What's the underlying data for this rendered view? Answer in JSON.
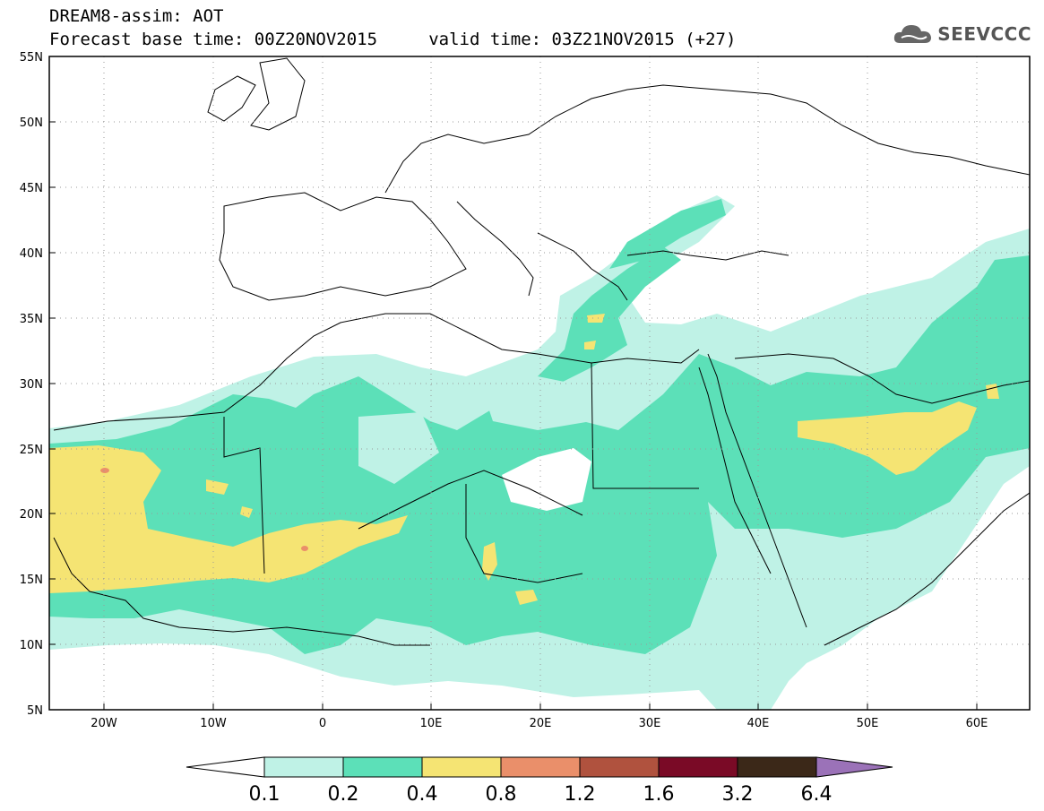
{
  "title": {
    "line1": "DREAM8-assim: AOT",
    "line2": "Forecast base time: 00Z20NOV2015     valid time: 03Z21NOV2015 (+27)"
  },
  "logo": {
    "text": "SEEVCCC",
    "icon": "cloud-icon"
  },
  "map": {
    "region": "North Africa, Mediterranean, Middle East",
    "lon_range": [
      -25,
      65
    ],
    "lat_range": [
      5,
      55
    ],
    "lat_ticks": [
      "55N",
      "50N",
      "45N",
      "40N",
      "35N",
      "30N",
      "25N",
      "20N",
      "15N",
      "10N",
      "5N"
    ],
    "lon_ticks": [
      "20W",
      "10W",
      "0",
      "10E",
      "20E",
      "30E",
      "40E",
      "50E",
      "60E"
    ],
    "gridlines": true,
    "field": "AOT"
  },
  "colorbar": {
    "labels": [
      "0.1",
      "0.2",
      "0.4",
      "0.8",
      "1.2",
      "1.6",
      "3.2",
      "6.4"
    ],
    "colors": [
      "#bff2e6",
      "#5ce0b8",
      "#f5e473",
      "#ea8f6a",
      "#b0523e",
      "#7a0a26",
      "#3b2818",
      "#9b72b8"
    ]
  }
}
